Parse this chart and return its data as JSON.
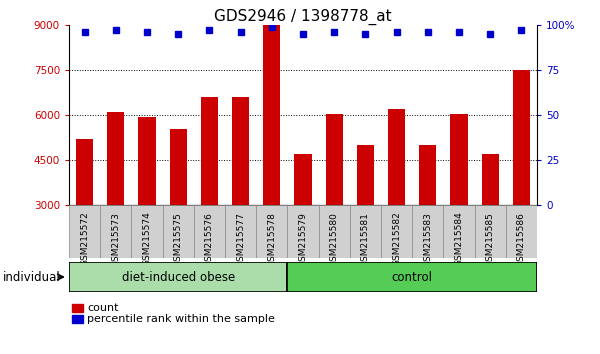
{
  "title": "GDS2946 / 1398778_at",
  "samples": [
    "GSM215572",
    "GSM215573",
    "GSM215574",
    "GSM215575",
    "GSM215576",
    "GSM215577",
    "GSM215578",
    "GSM215579",
    "GSM215580",
    "GSM215581",
    "GSM215582",
    "GSM215583",
    "GSM215584",
    "GSM215585",
    "GSM215586"
  ],
  "counts": [
    5200,
    6100,
    5950,
    5550,
    6600,
    6600,
    9000,
    4700,
    6050,
    5000,
    6200,
    5000,
    6050,
    4700,
    7500
  ],
  "percentiles": [
    96,
    97,
    96,
    95,
    97,
    96,
    99,
    95,
    96,
    95,
    96,
    96,
    96,
    95,
    97
  ],
  "group1_label": "diet-induced obese",
  "group1_count": 7,
  "group2_label": "control",
  "group2_count": 8,
  "individual_label": "individual",
  "bar_color": "#cc0000",
  "dot_color": "#0000cc",
  "group1_bg": "#aaddaa",
  "group2_bg": "#55cc55",
  "tick_bg": "#d0d0d0",
  "ymin": 3000,
  "ymax": 9000,
  "yticks": [
    3000,
    4500,
    6000,
    7500,
    9000
  ],
  "ytick_labels_left": [
    "3000",
    "4500",
    "6000",
    "7500",
    "9000"
  ],
  "right_yticks": [
    0,
    25,
    50,
    75,
    100
  ],
  "right_ytick_labels": [
    "0",
    "25",
    "50",
    "75",
    "100%"
  ],
  "grid_values": [
    4500,
    6000,
    7500
  ],
  "legend_count_label": "count",
  "legend_pct_label": "percentile rank within the sample",
  "title_fontsize": 11,
  "tick_fontsize": 7.5,
  "label_fontsize": 8.5
}
